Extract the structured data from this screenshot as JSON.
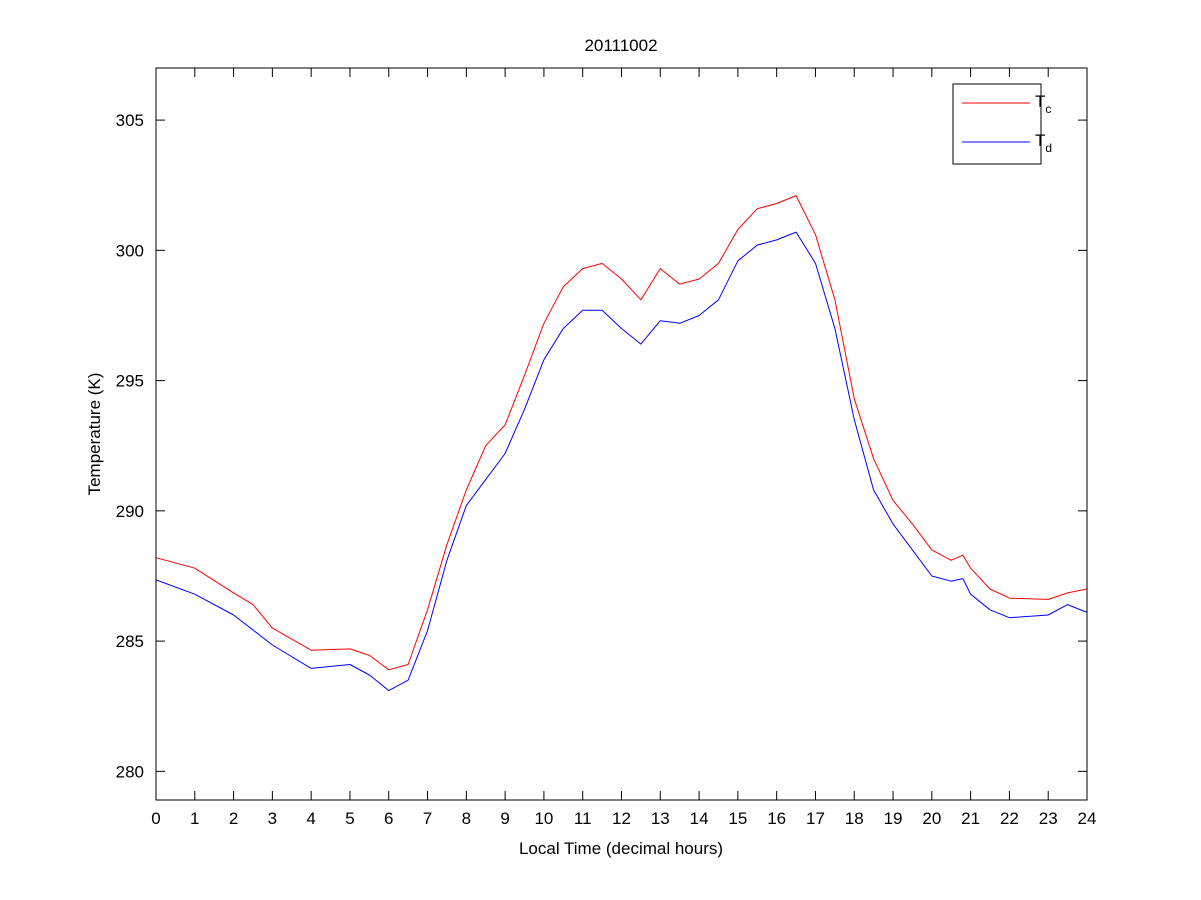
{
  "chart_data": {
    "type": "line",
    "title": "20111002",
    "xlabel": "Local Time (decimal hours)",
    "ylabel": "Temperature (K)",
    "xlim": [
      0,
      24
    ],
    "ylim": [
      278.9,
      307
    ],
    "xticks": [
      0,
      1,
      2,
      3,
      4,
      5,
      6,
      7,
      8,
      9,
      10,
      11,
      12,
      13,
      14,
      15,
      16,
      17,
      18,
      19,
      20,
      21,
      22,
      23,
      24
    ],
    "yticks": [
      280,
      285,
      290,
      295,
      300,
      305
    ],
    "grid": false,
    "legend_position": "top-right",
    "series": [
      {
        "name": "T",
        "subscript": "c",
        "color": "#ff0000",
        "x": [
          0,
          1,
          2,
          2.5,
          3,
          4,
          5,
          5.5,
          6,
          6.5,
          7,
          7.5,
          8,
          8.5,
          9,
          9.5,
          10,
          10.5,
          11,
          11.5,
          12,
          12.5,
          13,
          13.5,
          14,
          14.5,
          15,
          15.5,
          16,
          16.5,
          17,
          17.5,
          18,
          18.5,
          19,
          19.5,
          20,
          20.5,
          20.8,
          21,
          21.5,
          22,
          23,
          23.5,
          24
        ],
        "y": [
          288.2,
          287.8,
          286.85,
          286.4,
          285.5,
          284.65,
          284.7,
          284.45,
          283.9,
          284.1,
          286.2,
          288.7,
          290.8,
          292.5,
          293.3,
          295.2,
          297.2,
          298.6,
          299.3,
          299.5,
          298.9,
          298.1,
          299.3,
          298.7,
          298.9,
          299.5,
          300.8,
          301.6,
          301.8,
          302.1,
          300.6,
          298.1,
          294.3,
          292.0,
          290.4,
          289.5,
          288.5,
          288.1,
          288.3,
          287.8,
          287.0,
          286.65,
          286.6,
          286.85,
          287.0
        ]
      },
      {
        "name": "T",
        "subscript": "d",
        "color": "#0000ff",
        "x": [
          0,
          1,
          2,
          3,
          4,
          5,
          5.5,
          6,
          6.5,
          7,
          7.5,
          8,
          8.5,
          9,
          9.5,
          10,
          10.5,
          11,
          11.5,
          12,
          12.5,
          13,
          13.5,
          14,
          14.5,
          15,
          15.5,
          16,
          16.5,
          17,
          17.5,
          18,
          18.5,
          19,
          19.5,
          20,
          20.5,
          20.8,
          21,
          21.5,
          22,
          23,
          23.5,
          24
        ],
        "y": [
          287.35,
          286.8,
          286.0,
          284.85,
          283.95,
          284.1,
          283.7,
          283.1,
          283.5,
          285.4,
          288.1,
          290.2,
          291.2,
          292.2,
          293.9,
          295.8,
          297.0,
          297.7,
          297.7,
          297.0,
          296.4,
          297.3,
          297.2,
          297.5,
          298.1,
          299.6,
          300.2,
          300.4,
          300.7,
          299.5,
          297.0,
          293.5,
          290.8,
          289.5,
          288.5,
          287.5,
          287.3,
          287.4,
          286.8,
          286.2,
          285.9,
          286.0,
          286.4,
          286.1
        ]
      }
    ]
  }
}
